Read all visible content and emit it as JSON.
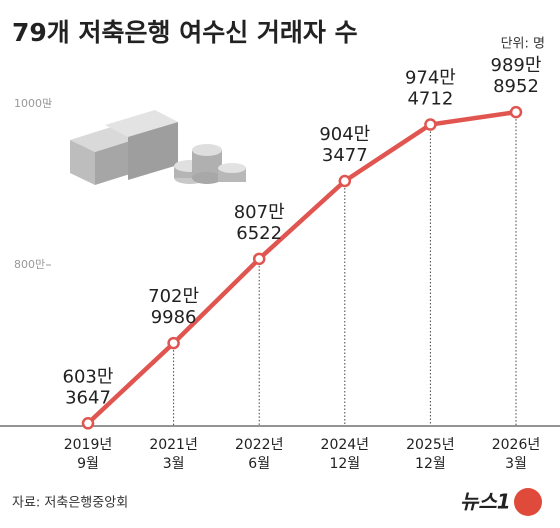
{
  "chart_data": {
    "type": "line",
    "title": "79개 저축은행 여수신 거래자 수",
    "unit": "단위: 명",
    "source": "자료: 저축은행중앙회",
    "logo": "뉴스1",
    "categories": [
      [
        "2019년",
        "9월"
      ],
      [
        "2021년",
        "3월"
      ],
      [
        "2022년",
        "6월"
      ],
      [
        "2024년",
        "12월"
      ],
      [
        "2025년",
        "12월"
      ],
      [
        "2026년",
        "3월"
      ]
    ],
    "values": [
      6033647,
      7029986,
      8076522,
      9043477,
      9744712,
      9898952
    ],
    "value_labels": [
      [
        "603만",
        "3647"
      ],
      [
        "702만",
        "9986"
      ],
      [
        "807만",
        "6522"
      ],
      [
        "904만",
        "3477"
      ],
      [
        "974만",
        "4712"
      ],
      [
        "989만",
        "8952"
      ]
    ],
    "color": "#e05550",
    "ylim": [
      6000000,
      10800000
    ],
    "yticks": [
      {
        "value": 8000000,
        "label": "800만"
      },
      {
        "value": 10000000,
        "label": "1000만"
      }
    ]
  }
}
